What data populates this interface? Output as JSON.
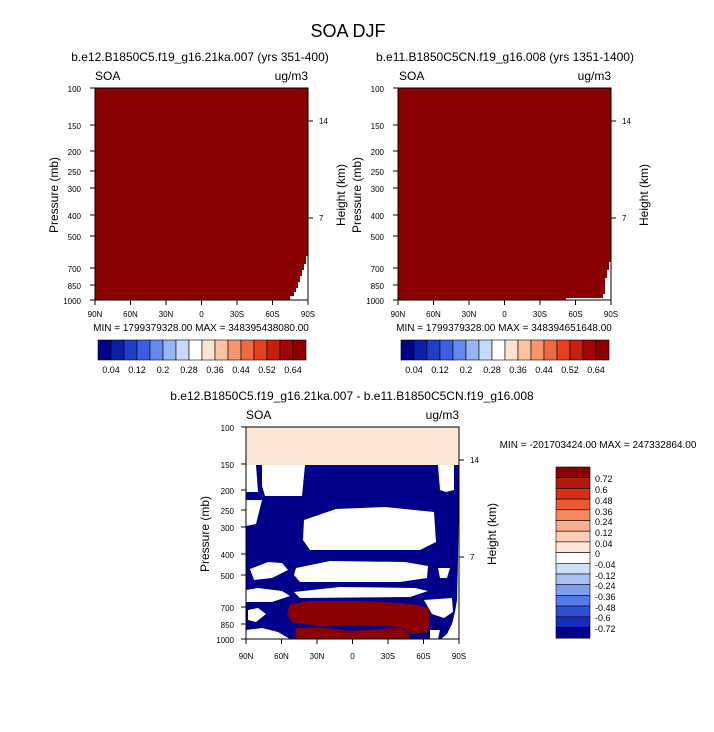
{
  "title": "SOA DJF",
  "chart_data": [
    {
      "type": "heatmap",
      "title": "b.e12.B1850C5.f19_g16.21ka.007 (yrs 351-400)",
      "corner_left": "SOA",
      "corner_right": "ug/m3",
      "ylabel": "Pressure (mb)",
      "ylabel_right": "Height (km)",
      "x_ticks": [
        "90N",
        "60N",
        "30N",
        "0",
        "30S",
        "60S",
        "90S"
      ],
      "y_ticks": [
        100,
        150,
        200,
        250,
        300,
        400,
        500,
        700,
        850,
        1000
      ],
      "y_ticks_right": [
        14,
        7
      ],
      "y_scale": "log",
      "stats": "MIN = 1799379328.00   MAX = 348395438080.00",
      "fill_color": "#8b0000",
      "colorbar_labels": [
        "0.04",
        "0.12",
        "0.2",
        "0.28",
        "0.36",
        "0.44",
        "0.52",
        "0.64"
      ],
      "colorbar_colors": [
        "#00008b",
        "#0d1fa8",
        "#1f3fc8",
        "#3a5fe0",
        "#6489ee",
        "#98b4f6",
        "#c7d9fb",
        "#ffffff",
        "#fde4d2",
        "#fbc1a0",
        "#f5956e",
        "#ee6a44",
        "#e6401e",
        "#c81e0c",
        "#a30505",
        "#8b0000"
      ]
    },
    {
      "type": "heatmap",
      "title": "b.e11.B1850C5CN.f19_g16.008 (yrs 1351-1400)",
      "corner_left": "SOA",
      "corner_right": "ug/m3",
      "ylabel": "Pressure (mb)",
      "ylabel_right": "Height (km)",
      "x_ticks": [
        "90N",
        "60N",
        "30N",
        "0",
        "30S",
        "60S",
        "90S"
      ],
      "y_ticks": [
        100,
        150,
        200,
        250,
        300,
        400,
        500,
        700,
        850,
        1000
      ],
      "y_ticks_right": [
        14,
        7
      ],
      "y_scale": "log",
      "stats": "MIN = 1799379328.00   MAX = 348394651648.00",
      "fill_color": "#8b0000",
      "colorbar_labels": [
        "0.04",
        "0.12",
        "0.2",
        "0.28",
        "0.36",
        "0.44",
        "0.52",
        "0.64"
      ],
      "colorbar_colors": [
        "#00008b",
        "#0d1fa8",
        "#1f3fc8",
        "#3a5fe0",
        "#6489ee",
        "#98b4f6",
        "#c7d9fb",
        "#ffffff",
        "#fde4d2",
        "#fbc1a0",
        "#f5956e",
        "#ee6a44",
        "#e6401e",
        "#c81e0c",
        "#a30505",
        "#8b0000"
      ]
    },
    {
      "type": "heatmap",
      "title": "b.e12.B1850C5.f19_g16.21ka.007 - b.e11.B1850C5CN.f19_g16.008",
      "corner_left": "SOA",
      "corner_right": "ug/m3",
      "ylabel": "Pressure (mb)",
      "ylabel_right": "Height (km)",
      "x_ticks": [
        "90N",
        "60N",
        "30N",
        "0",
        "30S",
        "60S",
        "90S"
      ],
      "y_ticks": [
        100,
        150,
        200,
        250,
        300,
        400,
        500,
        700,
        850,
        1000
      ],
      "y_ticks_right": [
        14,
        7
      ],
      "y_scale": "log",
      "stats": "MIN = -201703424.00   MAX = 247332864.00",
      "colorbar_labels": [
        "0.72",
        "0.6",
        "0.48",
        "0.36",
        "0.24",
        "0.12",
        "0.04",
        "0",
        "-0.04",
        "-0.12",
        "-0.24",
        "-0.36",
        "-0.48",
        "-0.6",
        "-0.72"
      ],
      "colorbar_colors": [
        "#8b0000",
        "#b11a0a",
        "#d63010",
        "#ee5a2e",
        "#f5875e",
        "#f9ae8d",
        "#fcd0b6",
        "#fde8d8",
        "#ffffff",
        "#cfe0fb",
        "#a7c1f5",
        "#7e9ff0",
        "#5679e8",
        "#2f4fd6",
        "#142dbd",
        "#00008b"
      ]
    }
  ]
}
